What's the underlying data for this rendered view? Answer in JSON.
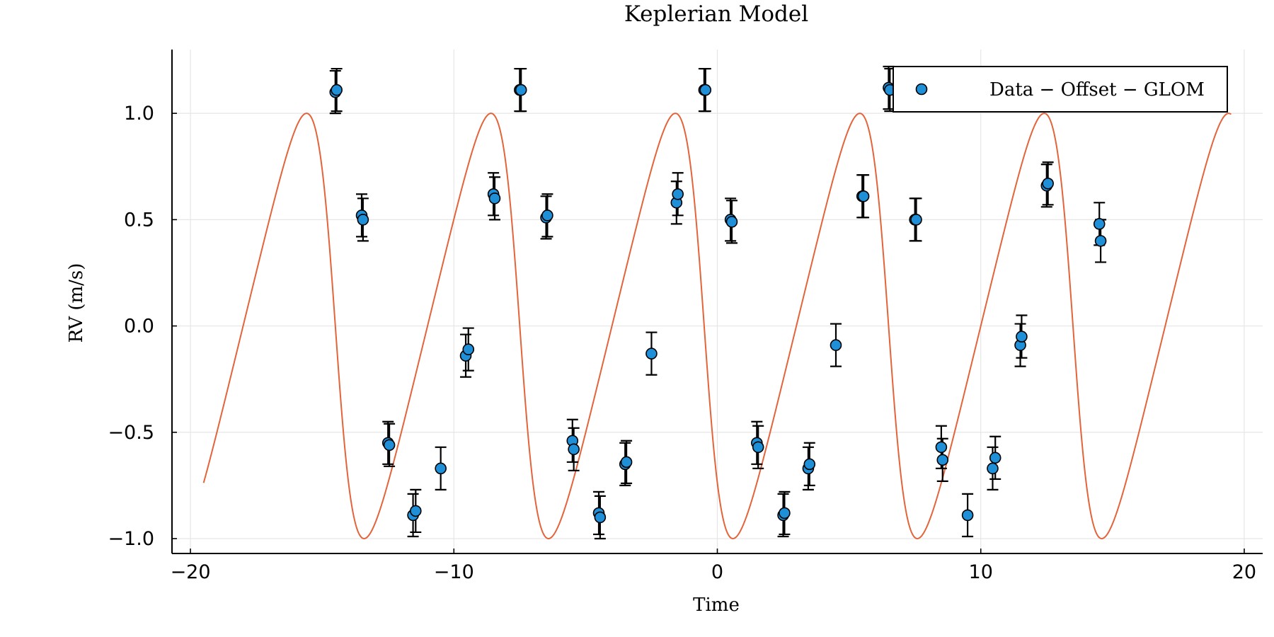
{
  "chart_data": {
    "type": "scatter",
    "title": "Keplerian Model",
    "xlabel": "Time",
    "ylabel": "RV (m/s)",
    "xlim": [
      -20.7,
      20.7
    ],
    "ylim": [
      -1.07,
      1.3
    ],
    "xticks": [
      -20,
      -10,
      0,
      10,
      20
    ],
    "xtick_labels": [
      "−20",
      "−10",
      "0",
      "10",
      "20"
    ],
    "yticks": [
      -1.0,
      -0.5,
      0.0,
      0.5,
      1.0
    ],
    "ytick_labels": [
      "−1.0",
      "−0.5",
      "0.0",
      "0.5",
      "1.0"
    ],
    "grid": true,
    "legend_position": "top-right",
    "series": [
      {
        "name": "Data − Offset − GLOM",
        "kind": "scatter-with-errorbars",
        "color": "#1f8fd8",
        "x": [
          -14.5,
          -14.45,
          -13.5,
          -13.45,
          -12.5,
          -12.45,
          -11.55,
          -11.45,
          -10.5,
          -9.55,
          -9.45,
          -8.5,
          -8.45,
          -7.5,
          -7.45,
          -6.5,
          -6.45,
          -5.5,
          -5.45,
          -4.5,
          -4.45,
          -3.5,
          -3.45,
          -2.5,
          -1.55,
          -1.5,
          -0.5,
          -0.45,
          0.5,
          0.55,
          1.5,
          1.55,
          2.5,
          2.55,
          3.45,
          3.5,
          4.5,
          5.5,
          5.55,
          6.5,
          6.55,
          7.5,
          7.55,
          8.5,
          8.55,
          9.5,
          10.45,
          10.55,
          11.5,
          11.55,
          12.5,
          12.55,
          14.5,
          14.55
        ],
        "y": [
          1.1,
          1.11,
          0.52,
          0.5,
          -0.55,
          -0.56,
          -0.89,
          -0.87,
          -0.67,
          -0.14,
          -0.11,
          0.62,
          0.6,
          1.11,
          1.11,
          0.51,
          0.52,
          -0.54,
          -0.58,
          -0.88,
          -0.9,
          -0.65,
          -0.64,
          -0.13,
          0.58,
          0.62,
          1.11,
          1.11,
          0.5,
          0.49,
          -0.55,
          -0.57,
          -0.89,
          -0.88,
          -0.67,
          -0.65,
          -0.09,
          0.61,
          0.61,
          1.12,
          1.11,
          0.5,
          0.5,
          -0.57,
          -0.63,
          -0.89,
          -0.67,
          -0.62,
          -0.09,
          -0.05,
          0.66,
          0.67,
          0.48,
          0.4
        ],
        "yerr": 0.1
      },
      {
        "name": "",
        "kind": "line",
        "color": "#e3643b",
        "model": {
          "period": 7.0,
          "K": 1.0,
          "eccentricity": 0.3,
          "omega_deg": 90,
          "peak_time": -0.5,
          "t_start": -19.5,
          "t_end": 19.5
        }
      }
    ]
  }
}
